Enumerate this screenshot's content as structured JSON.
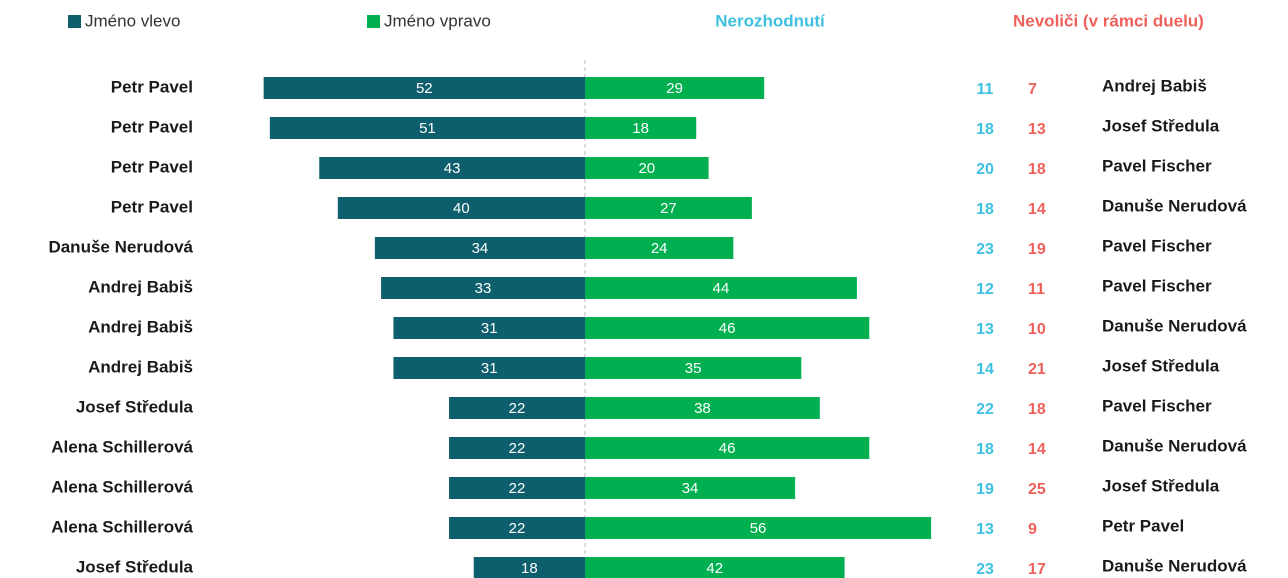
{
  "chart_data": {
    "type": "diverging-bar",
    "left_labels": [
      "Petr Pavel",
      "Petr Pavel",
      "Petr Pavel",
      "Petr Pavel",
      "Danuše Nerudová",
      "Andrej Babiš",
      "Andrej Babiš",
      "Andrej Babiš",
      "Josef Středula",
      "Alena Schillerová",
      "Alena Schillerová",
      "Alena Schillerová",
      "Josef Středula"
    ],
    "right_labels": [
      "Andrej Babiš",
      "Josef Středula",
      "Pavel Fischer",
      "Danuše Nerudová",
      "Pavel Fischer",
      "Pavel Fischer",
      "Danuše Nerudová",
      "Josef Středula",
      "Pavel Fischer",
      "Danuše Nerudová",
      "Josef Středula",
      "Petr Pavel",
      "Danuše Nerudová"
    ],
    "series": [
      {
        "name": "Jméno vlevo",
        "color": "#0e5f6e",
        "values": [
          52,
          51,
          43,
          40,
          34,
          33,
          31,
          31,
          22,
          22,
          22,
          22,
          18
        ]
      },
      {
        "name": "Jméno vpravo",
        "color": "#00b050",
        "values": [
          29,
          18,
          20,
          27,
          24,
          44,
          46,
          35,
          38,
          46,
          34,
          56,
          42
        ]
      },
      {
        "name": "Nerozhodnutí",
        "color": "#3ec1e0",
        "values": [
          11,
          18,
          20,
          18,
          23,
          12,
          13,
          14,
          22,
          18,
          19,
          13,
          23
        ]
      },
      {
        "name": "Nevoliči (v rámci duelu)",
        "color": "#f0605a",
        "values": [
          7,
          13,
          18,
          14,
          19,
          11,
          10,
          21,
          18,
          14,
          25,
          9,
          17
        ]
      }
    ]
  }
}
